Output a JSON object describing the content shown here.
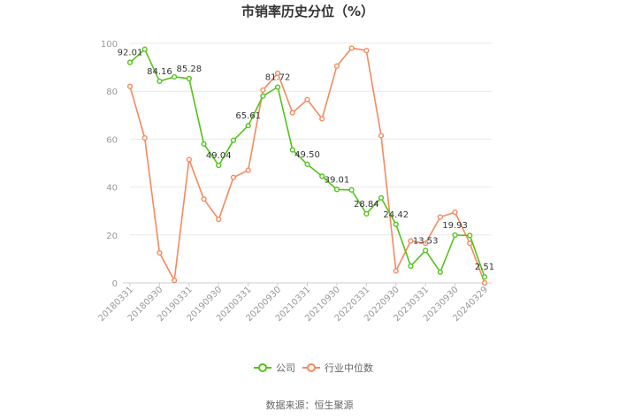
{
  "title": "市销率历史分位（%）",
  "source": "数据来源：恒生聚源",
  "colors": {
    "company": "#52c41a",
    "industry": "#f5895f",
    "grid": "#e8e8e8",
    "axis": "#cccccc"
  },
  "chart_data": {
    "type": "line",
    "title": "市销率历史分位（%）",
    "ylim": [
      0,
      100
    ],
    "yticks": [
      0,
      20,
      40,
      60,
      80,
      100
    ],
    "xtick_labels": [
      "20180331",
      "20180930",
      "20190331",
      "20190930",
      "20200331",
      "20200930",
      "20210331",
      "20210930",
      "20220331",
      "20220930",
      "20230331",
      "20230930",
      "20240329"
    ],
    "x": [
      "20180331",
      "20180630",
      "20180930",
      "20181231",
      "20190331",
      "20190630",
      "20190930",
      "20191231",
      "20200331",
      "20200630",
      "20200930",
      "20201231",
      "20210331",
      "20210630",
      "20210930",
      "20211231",
      "20220331",
      "20220630",
      "20220930",
      "20221231",
      "20230331",
      "20230630",
      "20230930",
      "20231231",
      "20240329"
    ],
    "legend_position": "bottom",
    "series": [
      {
        "name": "公司",
        "color": "#52c41a",
        "values": [
          92.01,
          97.5,
          84.16,
          86.0,
          85.28,
          58.0,
          49.04,
          59.5,
          65.61,
          78.0,
          81.72,
          55.5,
          49.5,
          44.5,
          39.01,
          38.8,
          28.84,
          35.5,
          24.42,
          7.0,
          13.53,
          4.5,
          19.93,
          19.8,
          2.51
        ],
        "labels": {
          "0": "92.01",
          "2": "84.16",
          "4": "85.28",
          "6": "49.04",
          "8": "65.61",
          "10": "81.72",
          "12": "49.50",
          "14": "39.01",
          "16": "28.84",
          "18": "24.42",
          "20": "13.53",
          "22": "19.93",
          "24": "2.51"
        }
      },
      {
        "name": "行业中位数",
        "color": "#f5895f",
        "values": [
          82.0,
          60.5,
          12.5,
          1.0,
          51.5,
          35.0,
          26.5,
          44.0,
          47.0,
          80.5,
          87.5,
          71.0,
          76.5,
          68.5,
          90.5,
          98.0,
          97.0,
          61.5,
          5.0,
          17.5,
          16.5,
          27.5,
          29.5,
          16.5,
          0.0
        ]
      }
    ]
  }
}
